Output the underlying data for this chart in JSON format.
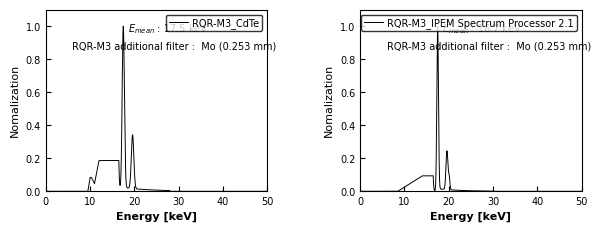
{
  "left": {
    "legend_label": "RQR-M3_CdTe",
    "ann1_text": "E",
    "ann1_sub": "mean",
    "ann1_val": " : 17.5 keV",
    "annotation2": "RQR-M3 additional filter :  Mo (0.253 mm)",
    "xlabel": "Energy [keV]",
    "ylabel": "Nomalization",
    "xlim": [
      0,
      50
    ],
    "ylim": [
      0,
      1.1
    ],
    "yticks": [
      0.0,
      0.2,
      0.4,
      0.6,
      0.8,
      1.0
    ],
    "xticks": [
      0,
      10,
      20,
      30,
      40,
      50
    ]
  },
  "right": {
    "legend_label": "RQR-M3_IPEM Spectrum Processor 2.1",
    "ann1_text": "E",
    "ann1_sub": "mean",
    "ann1_val": " : 16.7 keV",
    "annotation2": "RQR-M3 additional filter :  Mo (0.253 mm)",
    "xlabel": "Energy [keV]",
    "ylabel": "Nomalization",
    "xlim": [
      0,
      50
    ],
    "ylim": [
      0,
      1.1
    ],
    "yticks": [
      0.0,
      0.2,
      0.4,
      0.6,
      0.8,
      1.0
    ],
    "xticks": [
      0,
      10,
      20,
      30,
      40,
      50
    ]
  },
  "line_color": "#000000",
  "line_width": 0.7,
  "font_size_label": 8,
  "font_size_annotation": 7,
  "font_size_legend": 7,
  "font_size_tick": 7
}
